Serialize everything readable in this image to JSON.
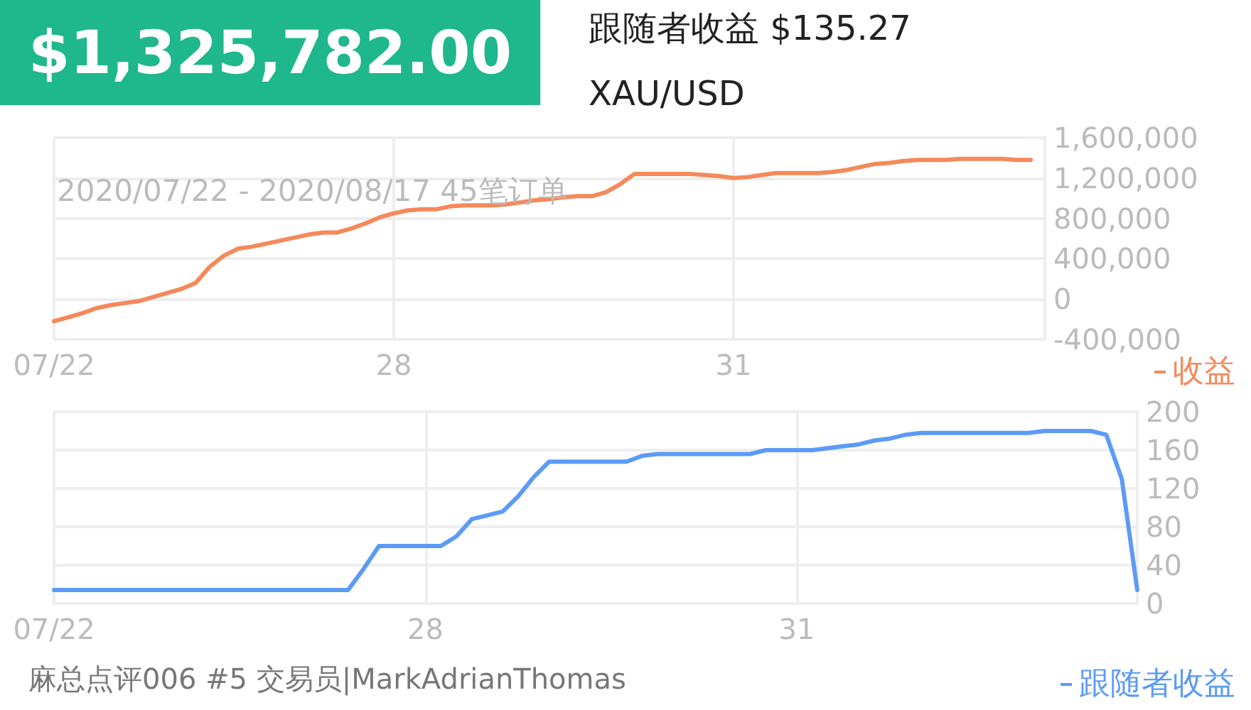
{
  "chart_data": [
    {
      "type": "line",
      "title": "$1,325,782.00",
      "subtitle": "跟随者收益 $135.27",
      "annotations": [
        "XAU/USD",
        "2020/07/22 - 2020/08/17 45笔订单"
      ],
      "categories": [
        "07/22",
        null,
        null,
        null,
        null,
        null,
        null,
        null,
        null,
        null,
        null,
        null,
        null,
        null,
        null,
        null,
        null,
        null,
        null,
        null,
        null,
        null,
        null,
        null,
        "28",
        null,
        null,
        null,
        null,
        null,
        null,
        null,
        null,
        null,
        null,
        null,
        null,
        null,
        null,
        null,
        null,
        null,
        null,
        null,
        null,
        null,
        null,
        null,
        "31",
        null,
        null,
        null,
        null,
        null,
        null,
        null,
        null,
        null,
        null,
        null,
        null,
        null,
        null,
        null,
        null,
        null,
        null,
        null,
        null,
        null,
        null
      ],
      "ylim": [
        -400000,
        1600000
      ],
      "yticks": [
        {
          "value": -400000,
          "label": "-400,000"
        },
        0,
        {
          "value": 400000,
          "label": "400,000"
        },
        {
          "value": 800000,
          "label": "800,000"
        },
        {
          "value": 1200000,
          "label": "1,200,000"
        },
        {
          "value": 1600000,
          "label": "1,600,000"
        }
      ],
      "grid": true,
      "legend": "bottom right",
      "marker": "none",
      "line_style": "solid",
      "series": [
        {
          "name": "收益",
          "color": "#f5895a",
          "values": [
            -220000,
            -180000,
            -140000,
            -90000,
            -60000,
            -40000,
            -20000,
            20000,
            60000,
            100000,
            160000,
            320000,
            430000,
            500000,
            520000,
            550000,
            580000,
            610000,
            640000,
            660000,
            660000,
            700000,
            750000,
            810000,
            850000,
            880000,
            890000,
            890000,
            920000,
            930000,
            930000,
            930000,
            940000,
            960000,
            980000,
            990000,
            1010000,
            1020000,
            1020000,
            1060000,
            1140000,
            1240000,
            1240000,
            1240000,
            1240000,
            1240000,
            1230000,
            1220000,
            1200000,
            1210000,
            1230000,
            1250000,
            1250000,
            1250000,
            1250000,
            1260000,
            1280000,
            1310000,
            1340000,
            1350000,
            1370000,
            1380000,
            1380000,
            1380000,
            1390000,
            1390000,
            1390000,
            1390000,
            1380000,
            1380000,
            null
          ]
        }
      ]
    },
    {
      "type": "line",
      "annotations": [
        "麻总点评006 #5 交易员|MarkAdrianThomas"
      ],
      "categories": [
        "07/22",
        null,
        null,
        null,
        null,
        null,
        null,
        null,
        null,
        null,
        null,
        null,
        null,
        null,
        null,
        null,
        null,
        null,
        null,
        null,
        null,
        null,
        null,
        null,
        "28",
        null,
        null,
        null,
        null,
        null,
        null,
        null,
        null,
        null,
        null,
        null,
        null,
        null,
        null,
        null,
        null,
        null,
        null,
        null,
        null,
        null,
        null,
        null,
        "31",
        null,
        null,
        null,
        null,
        null,
        null,
        null,
        null,
        null,
        null,
        null,
        null,
        null,
        null,
        null,
        null,
        null,
        null,
        null,
        null,
        null,
        null
      ],
      "ylim": [
        0,
        200
      ],
      "yticks": [
        0,
        40,
        80,
        120,
        160,
        200
      ],
      "grid": true,
      "legend": "bottom right",
      "marker": "none",
      "line_style": "solid",
      "series": [
        {
          "name": "跟随者收益",
          "color": "#5b9bf5",
          "values": [
            14,
            14,
            14,
            14,
            14,
            14,
            14,
            14,
            14,
            14,
            14,
            14,
            14,
            14,
            14,
            14,
            14,
            14,
            14,
            14,
            36,
            60,
            60,
            60,
            60,
            60,
            70,
            88,
            92,
            96,
            112,
            132,
            148,
            148,
            148,
            148,
            148,
            148,
            154,
            156,
            156,
            156,
            156,
            156,
            156,
            156,
            160,
            160,
            160,
            160,
            162,
            164,
            166,
            170,
            172,
            176,
            178,
            178,
            178,
            178,
            178,
            178,
            178,
            178,
            180,
            180,
            180,
            180,
            176,
            130,
            14
          ]
        }
      ]
    }
  ]
}
